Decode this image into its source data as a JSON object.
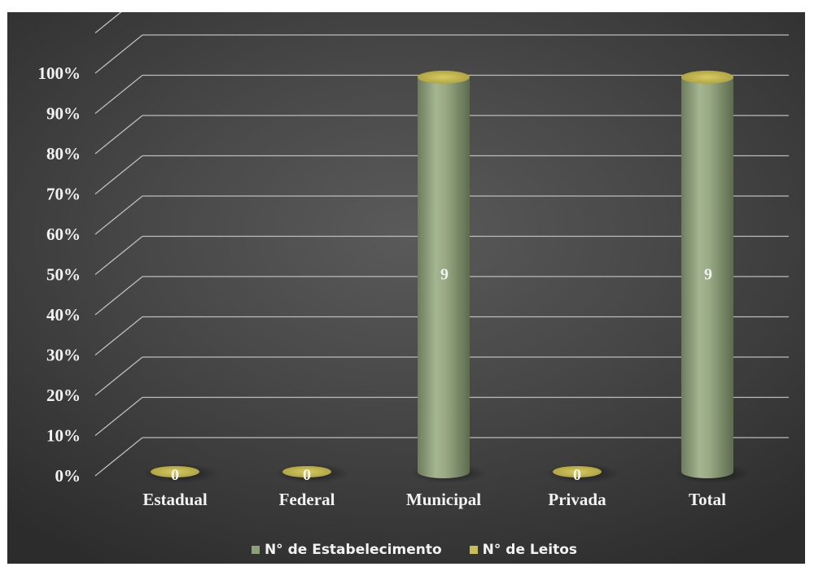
{
  "chart_data": {
    "type": "bar",
    "style": "3d-cylinder",
    "categories": [
      "Estadual",
      "Federal",
      "Municipal",
      "Privada",
      "Total"
    ],
    "y_ticks": [
      "0%",
      "10%",
      "20%",
      "30%",
      "40%",
      "50%",
      "60%",
      "70%",
      "80%",
      "90%",
      "100%"
    ],
    "ylim": [
      0,
      100
    ],
    "y_unit": "percent",
    "grid": true,
    "legend_position": "bottom",
    "series": [
      {
        "name": "N° de Estabelecimento",
        "color": "#8ea07a",
        "values_percent": [
          0,
          0,
          100,
          0,
          100
        ],
        "labels": [
          "0",
          "0",
          "9",
          "0",
          "9"
        ]
      },
      {
        "name": "N° de Leitos",
        "color": "#c9be55",
        "values_percent": [
          0,
          0,
          0,
          0,
          0
        ],
        "labels": []
      }
    ]
  }
}
